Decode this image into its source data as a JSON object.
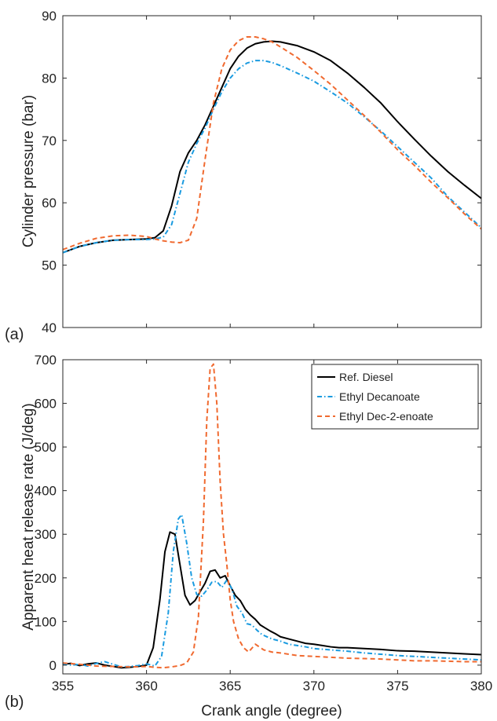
{
  "chart_data": [
    {
      "type": "line",
      "panel_label": "(a)",
      "xlabel": "",
      "ylabel": "Cylinder pressure (bar)",
      "xlim": [
        355,
        380
      ],
      "ylim": [
        40,
        90
      ],
      "xticks": [
        355,
        360,
        365,
        370,
        375,
        380
      ],
      "yticks": [
        40,
        50,
        60,
        70,
        80,
        90
      ],
      "show_xtick_labels": false,
      "grid": false,
      "legend": "none",
      "series": [
        {
          "name": "Ref. Diesel",
          "color": "#000000",
          "dash": "solid",
          "x": [
            355,
            356,
            357,
            358,
            359,
            360,
            360.5,
            361,
            361.5,
            362,
            362.5,
            363,
            363.5,
            364,
            364.5,
            365,
            365.5,
            366,
            366.5,
            367,
            367.5,
            368,
            369,
            370,
            371,
            372,
            373,
            374,
            375,
            376,
            377,
            378,
            379,
            380
          ],
          "y": [
            52.0,
            53.0,
            53.6,
            54.0,
            54.1,
            54.2,
            54.4,
            55.5,
            59.5,
            65.0,
            68.0,
            70.0,
            72.5,
            75.5,
            78.5,
            81.5,
            83.5,
            84.8,
            85.5,
            85.8,
            85.9,
            85.8,
            85.2,
            84.2,
            82.8,
            80.8,
            78.5,
            76.0,
            73.0,
            70.2,
            67.5,
            65.0,
            62.8,
            60.7
          ]
        },
        {
          "name": "Ethyl Decanoate",
          "color": "#1a9be0",
          "dash": "dashdot",
          "x": [
            355,
            356,
            357,
            358,
            359,
            360,
            360.5,
            361,
            361.5,
            362,
            362.5,
            363,
            363.5,
            364,
            364.5,
            365,
            365.5,
            366,
            366.5,
            367,
            367.5,
            368,
            369,
            370,
            371,
            372,
            373,
            374,
            375,
            376,
            377,
            378,
            379,
            380
          ],
          "y": [
            52.0,
            53.0,
            53.6,
            54.0,
            54.1,
            54.1,
            54.2,
            54.5,
            56.5,
            61.5,
            66.5,
            69.5,
            72.0,
            75.0,
            77.8,
            80.0,
            81.5,
            82.4,
            82.8,
            82.8,
            82.5,
            82.0,
            80.8,
            79.5,
            77.8,
            76.0,
            73.8,
            71.5,
            69.0,
            66.5,
            64.0,
            61.0,
            58.5,
            56.0
          ]
        },
        {
          "name": "Ethyl Dec-2-enoate",
          "color": "#f06a30",
          "dash": "dashed",
          "x": [
            355,
            356,
            357,
            358,
            359,
            360,
            360.5,
            361,
            361.5,
            362,
            362.5,
            363,
            363.5,
            364,
            364.5,
            365,
            365.5,
            366,
            366.5,
            367,
            367.5,
            368,
            369,
            370,
            371,
            372,
            373,
            374,
            375,
            376,
            377,
            378,
            379,
            380
          ],
          "y": [
            52.5,
            53.5,
            54.3,
            54.7,
            54.8,
            54.6,
            54.2,
            53.9,
            53.7,
            53.6,
            54.0,
            57.5,
            67.0,
            76.0,
            81.5,
            84.5,
            86.0,
            86.6,
            86.6,
            86.3,
            85.8,
            85.0,
            83.3,
            81.2,
            79.0,
            76.5,
            74.0,
            71.3,
            68.5,
            66.0,
            63.3,
            60.8,
            58.2,
            55.8
          ]
        }
      ]
    },
    {
      "type": "line",
      "panel_label": "(b)",
      "xlabel": "Crank angle (degree)",
      "ylabel": "Apparent heat release rate (J/deg)",
      "xlim": [
        355,
        380
      ],
      "ylim": [
        -20,
        700
      ],
      "xticks": [
        355,
        360,
        365,
        370,
        375,
        380
      ],
      "yticks": [
        0,
        100,
        200,
        300,
        400,
        500,
        600,
        700
      ],
      "show_xtick_labels": true,
      "grid": false,
      "legend": "top-right",
      "series": [
        {
          "name": "Ref. Diesel",
          "color": "#000000",
          "dash": "solid",
          "x": [
            355,
            355.5,
            356,
            356.5,
            357,
            357.5,
            358,
            358.5,
            359,
            359.5,
            360,
            360.4,
            360.8,
            361.1,
            361.4,
            361.7,
            362,
            362.3,
            362.6,
            362.9,
            363.2,
            363.5,
            363.8,
            364.1,
            364.4,
            364.7,
            365,
            365.3,
            365.6,
            365.9,
            366.2,
            366.5,
            366.8,
            367.1,
            367.4,
            367.7,
            368,
            368.5,
            369,
            369.5,
            370,
            370.5,
            371,
            371.5,
            372,
            373,
            374,
            375,
            376,
            377,
            378,
            379,
            380
          ],
          "y": [
            2,
            4,
            -1,
            3,
            5,
            0,
            -3,
            -6,
            -5,
            -3,
            0,
            40,
            150,
            260,
            305,
            300,
            230,
            160,
            138,
            148,
            168,
            188,
            215,
            218,
            200,
            205,
            182,
            160,
            148,
            128,
            115,
            105,
            92,
            85,
            78,
            72,
            65,
            60,
            55,
            50,
            48,
            45,
            42,
            40,
            40,
            38,
            36,
            33,
            32,
            30,
            28,
            26,
            24
          ]
        },
        {
          "name": "Ethyl Decanoate",
          "color": "#1a9be0",
          "dash": "dashdot",
          "x": [
            355,
            355.5,
            356,
            356.5,
            357,
            357.5,
            358,
            358.5,
            359,
            359.5,
            360,
            360.5,
            360.9,
            361.3,
            361.6,
            361.9,
            362.1,
            362.4,
            362.7,
            363,
            363.3,
            363.6,
            363.9,
            364.2,
            364.5,
            364.8,
            365.1,
            365.4,
            365.7,
            366,
            366.3,
            366.6,
            366.9,
            367.2,
            367.5,
            368,
            368.5,
            369,
            369.5,
            370,
            371,
            372,
            373,
            374,
            375,
            376,
            377,
            378,
            379,
            380
          ],
          "y": [
            3,
            0,
            2,
            -2,
            4,
            8,
            2,
            -4,
            -3,
            -1,
            3,
            -2,
            20,
            120,
            260,
            335,
            345,
            280,
            200,
            162,
            158,
            172,
            190,
            192,
            178,
            195,
            175,
            135,
            120,
            95,
            92,
            80,
            70,
            65,
            60,
            55,
            48,
            45,
            42,
            38,
            35,
            32,
            28,
            25,
            22,
            20,
            18,
            16,
            14,
            12
          ]
        },
        {
          "name": "Ethyl Dec-2-enoate",
          "color": "#f06a30",
          "dash": "dashed",
          "x": [
            355,
            356,
            357,
            358,
            359,
            360,
            360.5,
            361,
            361.5,
            362,
            362.4,
            362.8,
            363.1,
            363.4,
            363.6,
            363.8,
            364,
            364.2,
            364.4,
            364.6,
            364.8,
            365,
            365.2,
            365.5,
            365.8,
            366.1,
            366.5,
            367,
            367.5,
            368,
            368.5,
            369,
            370,
            371,
            372,
            373,
            374,
            375,
            376,
            377,
            378,
            379,
            380
          ],
          "y": [
            5,
            2,
            -2,
            -3,
            -4,
            -3,
            -5,
            -6,
            -4,
            -1,
            5,
            30,
            110,
            330,
            560,
            680,
            690,
            600,
            420,
            300,
            230,
            150,
            100,
            60,
            40,
            30,
            48,
            35,
            30,
            28,
            25,
            22,
            20,
            18,
            16,
            15,
            14,
            12,
            10,
            10,
            9,
            8,
            8
          ]
        }
      ]
    }
  ]
}
